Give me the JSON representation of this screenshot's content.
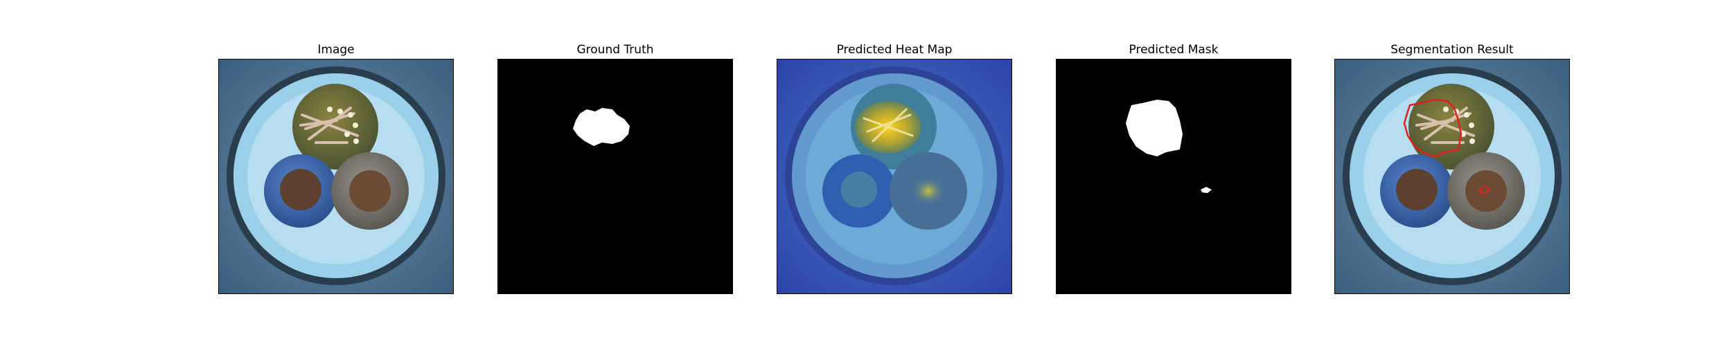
{
  "panels": [
    {
      "id": "image",
      "title": "Image"
    },
    {
      "id": "ground-truth",
      "title": "Ground Truth"
    },
    {
      "id": "heat-map",
      "title": "Predicted Heat Map"
    },
    {
      "id": "predicted-mask",
      "title": "Predicted Mask"
    },
    {
      "id": "segmentation-result",
      "title": "Segmentation Result"
    }
  ],
  "colors": {
    "background_field": "#3d6485",
    "cable_ring": "#a9d7ec",
    "outer_dark_ring": "#2a3d4c",
    "top_wire_tint": "#6b6a2e",
    "left_wire_blue": "#3d6ab5",
    "right_wire_gray": "#7a7770",
    "copper_strands": "#6b4b34",
    "mask_white": "#ffffff",
    "mask_black": "#000000",
    "segmentation_outline": "#e0201e"
  }
}
